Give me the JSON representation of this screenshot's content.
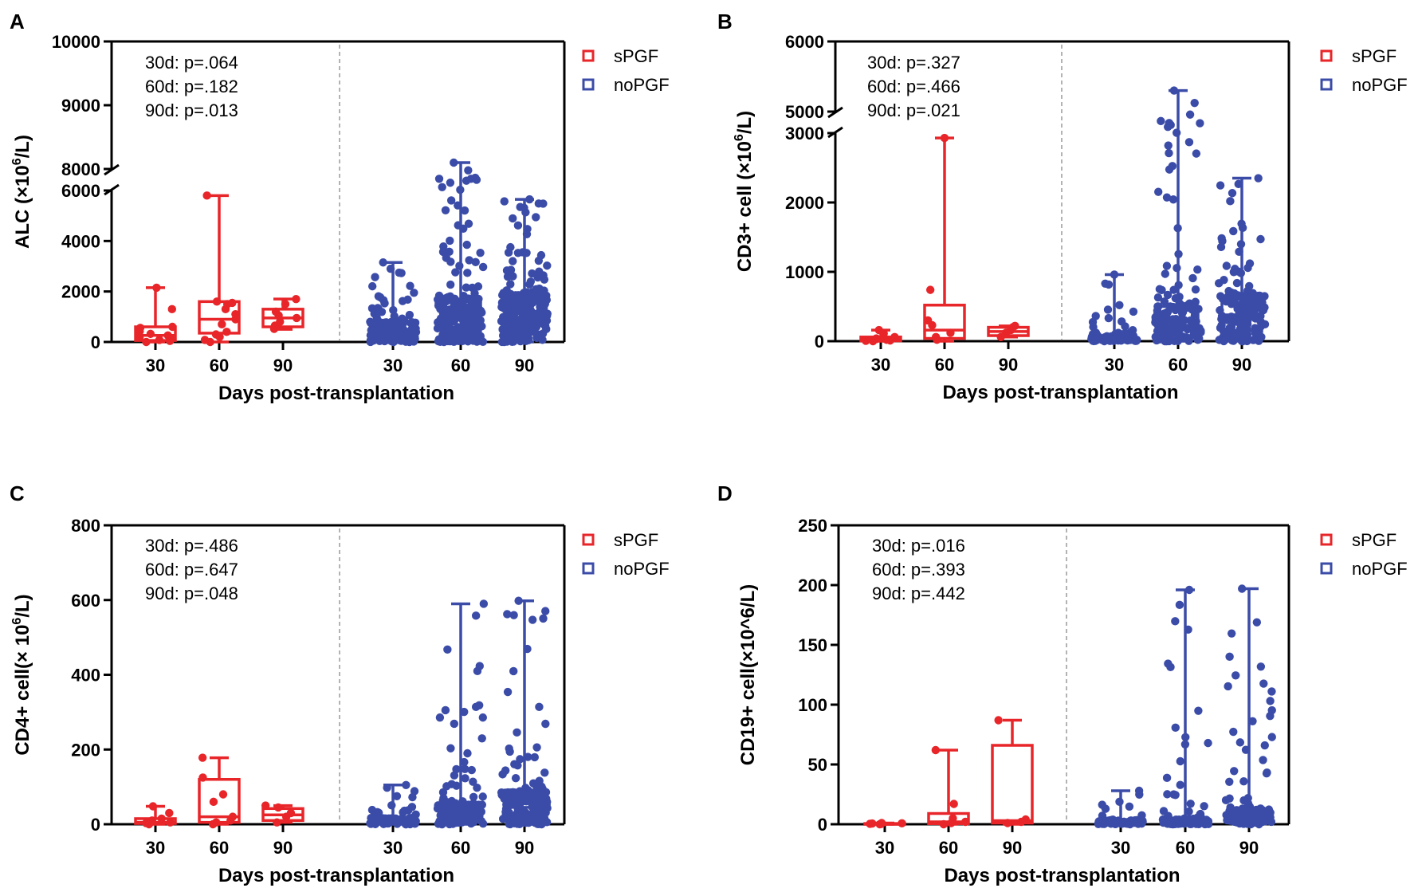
{
  "colors": {
    "spgf": "#e8262a",
    "nopgf": "#3b4ca8",
    "axis": "#000000",
    "divider": "#9a9a9a"
  },
  "chart_data": [
    {
      "panel": "A",
      "type": "box",
      "ylabel": "ALC (×10^6/L)",
      "ylabel_prefix": "ALC (×10",
      "ylabel_sup": "6",
      "ylabel_suffix": "/L)",
      "xlabel": "Days post-transplantation",
      "categories": [
        "30",
        "60",
        "90",
        "30",
        "60",
        "90"
      ],
      "ylim": [
        0,
        10000
      ],
      "axis_break": [
        6000,
        8000
      ],
      "yticks": [
        "0",
        "2000",
        "4000",
        "6000",
        "8000",
        "9000",
        "10000"
      ],
      "annotations": [
        "30d: p=.064",
        "60d: p=.182",
        "90d: p=.013"
      ],
      "legend": [
        "sPGF",
        "noPGF"
      ],
      "series": [
        {
          "name": "sPGF",
          "groups": [
            {
              "day": "30",
              "q1": 60,
              "median": 260,
              "q3": 600,
              "min": 0,
              "max": 2150,
              "points": [
                0,
                40,
                80,
                120,
                180,
                260,
                320,
                420,
                560,
                600,
                1300,
                2150
              ]
            },
            {
              "day": "60",
              "q1": 350,
              "median": 900,
              "q3": 1600,
              "min": 0,
              "max": 5800,
              "points": [
                0,
                80,
                200,
                300,
                400,
                700,
                900,
                1100,
                1300,
                1500,
                1550,
                1600,
                5800
              ]
            },
            {
              "day": "90",
              "q1": 600,
              "median": 950,
              "q3": 1300,
              "min": 500,
              "max": 1700,
              "points": [
                520,
                650,
                800,
                950,
                1050,
                1200,
                1500,
                1700
              ]
            }
          ]
        },
        {
          "name": "noPGF",
          "groups": [
            {
              "day": "30",
              "q1": 80,
              "median": 300,
              "q3": 750,
              "min": 0,
              "max": 3150,
              "dense": true,
              "n": 140,
              "seed": 11
            },
            {
              "day": "60",
              "q1": 600,
              "median": 1100,
              "q3": 1700,
              "min": 0,
              "max": 8100,
              "dense": true,
              "n": 220,
              "seed": 23
            },
            {
              "day": "90",
              "q1": 750,
              "median": 1200,
              "q3": 1850,
              "min": 0,
              "max": 5650,
              "dense": true,
              "n": 220,
              "seed": 37
            }
          ]
        }
      ]
    },
    {
      "panel": "B",
      "type": "box",
      "ylabel": "CD3+ cell (×10^6/L)",
      "ylabel_prefix": "CD3+ cell (×10",
      "ylabel_sup": "6",
      "ylabel_suffix": "/L)",
      "xlabel": "Days post-transplantation",
      "categories": [
        "30",
        "60",
        "90",
        "30",
        "60",
        "90"
      ],
      "ylim": [
        0,
        6000
      ],
      "axis_break": [
        3000,
        5000
      ],
      "yticks": [
        "0",
        "1000",
        "2000",
        "3000",
        "5000",
        "6000"
      ],
      "annotations": [
        "30d: p=.327",
        "60d: p=.466",
        "90d: p=.021"
      ],
      "legend": [
        "sPGF",
        "noPGF"
      ],
      "series": [
        {
          "name": "sPGF",
          "groups": [
            {
              "day": "30",
              "q1": 5,
              "median": 20,
              "q3": 60,
              "min": 0,
              "max": 160,
              "points": [
                0,
                5,
                10,
                20,
                30,
                40,
                60,
                110,
                160
              ]
            },
            {
              "day": "60",
              "q1": 40,
              "median": 160,
              "q3": 520,
              "min": 0,
              "max": 2930,
              "points": [
                20,
                60,
                120,
                230,
                300,
                740,
                2930
              ]
            },
            {
              "day": "90",
              "q1": 80,
              "median": 140,
              "q3": 200,
              "min": 60,
              "max": 220,
              "points": [
                60,
                120,
                160,
                200,
                220
              ]
            }
          ]
        },
        {
          "name": "noPGF",
          "groups": [
            {
              "day": "30",
              "q1": 5,
              "median": 30,
              "q3": 80,
              "min": 0,
              "max": 960,
              "dense": true,
              "n": 90,
              "seed": 5
            },
            {
              "day": "60",
              "q1": 80,
              "median": 230,
              "q3": 500,
              "min": 0,
              "max": 5300,
              "dense": true,
              "n": 140,
              "seed": 19
            },
            {
              "day": "90",
              "q1": 150,
              "median": 380,
              "q3": 640,
              "min": 0,
              "max": 2350,
              "dense": true,
              "n": 160,
              "seed": 29
            }
          ]
        }
      ]
    },
    {
      "panel": "C",
      "type": "box",
      "ylabel": "CD4+ cell(× 10^6/L)",
      "ylabel_prefix": "CD4+ cell(× 10",
      "ylabel_sup": "6",
      "ylabel_suffix": "/L)",
      "xlabel": "Days post-transplantation",
      "categories": [
        "30",
        "60",
        "90",
        "30",
        "60",
        "90"
      ],
      "ylim": [
        0,
        800
      ],
      "yticks": [
        "0",
        "200",
        "400",
        "600",
        "800"
      ],
      "annotations": [
        "30d: p=.486",
        "60d: p=.647",
        "90d: p=.048"
      ],
      "legend": [
        "sPGF",
        "noPGF"
      ],
      "series": [
        {
          "name": "sPGF",
          "groups": [
            {
              "day": "30",
              "q1": 2,
              "median": 5,
              "q3": 15,
              "min": 0,
              "max": 48,
              "points": [
                0,
                3,
                5,
                10,
                15,
                30,
                48
              ]
            },
            {
              "day": "60",
              "q1": 5,
              "median": 20,
              "q3": 120,
              "min": 0,
              "max": 178,
              "points": [
                0,
                5,
                10,
                20,
                60,
                80,
                125,
                178
              ]
            },
            {
              "day": "90",
              "q1": 10,
              "median": 25,
              "q3": 42,
              "min": 5,
              "max": 50,
              "points": [
                5,
                20,
                30,
                45,
                50
              ]
            }
          ]
        },
        {
          "name": "noPGF",
          "groups": [
            {
              "day": "30",
              "q1": 2,
              "median": 6,
              "q3": 15,
              "min": 0,
              "max": 105,
              "dense": true,
              "n": 80,
              "seed": 41
            },
            {
              "day": "60",
              "q1": 10,
              "median": 25,
              "q3": 52,
              "min": 0,
              "max": 590,
              "dense": true,
              "n": 130,
              "seed": 43
            },
            {
              "day": "90",
              "q1": 20,
              "median": 45,
              "q3": 85,
              "min": 0,
              "max": 598,
              "dense": true,
              "n": 160,
              "seed": 47
            }
          ]
        }
      ]
    },
    {
      "panel": "D",
      "type": "box",
      "ylabel": "CD19+ cell(×10^6/L)",
      "ylabel_prefix": "CD19+ cell(×10^6/L)",
      "ylabel_sup": "",
      "ylabel_suffix": "",
      "xlabel": "Days post-transplantation",
      "categories": [
        "30",
        "60",
        "90",
        "30",
        "60",
        "90"
      ],
      "ylim": [
        0,
        250
      ],
      "yticks": [
        "0",
        "50",
        "100",
        "150",
        "200",
        "250"
      ],
      "annotations": [
        "30d: p=.016",
        "60d: p=.393",
        "90d: p=.442"
      ],
      "legend": [
        "sPGF",
        "noPGF"
      ],
      "series": [
        {
          "name": "sPGF",
          "groups": [
            {
              "day": "30",
              "q1": 0,
              "median": 0.3,
              "q3": 0.6,
              "min": 0,
              "max": 1,
              "points": [
                0,
                0.2,
                0.4,
                0.6,
                0.8,
                1
              ]
            },
            {
              "day": "60",
              "q1": 0.5,
              "median": 2,
              "q3": 9,
              "min": 0,
              "max": 62,
              "points": [
                0,
                1,
                2,
                5,
                17,
                62
              ]
            },
            {
              "day": "90",
              "q1": 1,
              "median": 3,
              "q3": 66,
              "min": 0,
              "max": 87,
              "points": [
                1,
                2,
                4,
                87
              ]
            }
          ]
        },
        {
          "name": "noPGF",
          "groups": [
            {
              "day": "30",
              "q1": 0.3,
              "median": 1,
              "q3": 3,
              "min": 0,
              "max": 28,
              "dense": true,
              "n": 80,
              "seed": 53
            },
            {
              "day": "60",
              "q1": 0.5,
              "median": 1.5,
              "q3": 4,
              "min": 0,
              "max": 196,
              "dense": true,
              "n": 110,
              "seed": 59
            },
            {
              "day": "90",
              "q1": 1,
              "median": 4,
              "q3": 12,
              "min": 0,
              "max": 197,
              "dense": true,
              "n": 130,
              "seed": 61
            }
          ]
        }
      ]
    }
  ]
}
